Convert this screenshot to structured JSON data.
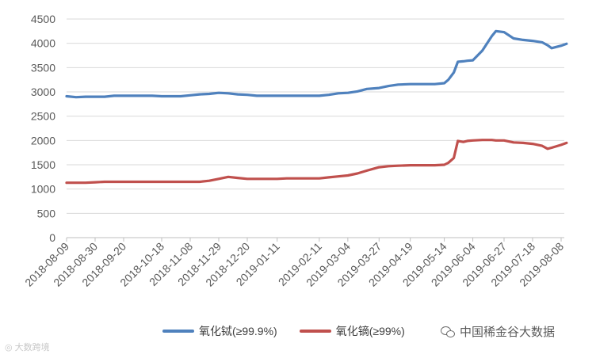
{
  "chart_data": {
    "type": "line",
    "title": "",
    "xlabel": "",
    "ylabel": "",
    "ylim": [
      0,
      4500
    ],
    "yticks": [
      0,
      500,
      1000,
      1500,
      2000,
      2500,
      3000,
      3500,
      4000,
      4500
    ],
    "x_tick_labels": [
      "2018-08-09",
      "2018-08-30",
      "2018-09-20",
      "2018-10-18",
      "2018-11-08",
      "2018-11-29",
      "2018-12-20",
      "2019-01-11",
      "2019-02-11",
      "2019-03-04",
      "2019-03-27",
      "2019-04-19",
      "2019-05-14",
      "2019-06-04",
      "2019-06-27",
      "2019-07-18",
      "2019-08-08"
    ],
    "grid": "horizontal",
    "legend": "bottom",
    "x": [
      "2018-08-09",
      "2018-08-16",
      "2018-08-23",
      "2018-08-30",
      "2018-09-06",
      "2018-09-13",
      "2018-09-20",
      "2018-09-27",
      "2018-10-11",
      "2018-10-18",
      "2018-10-25",
      "2018-11-01",
      "2018-11-08",
      "2018-11-15",
      "2018-11-22",
      "2018-11-29",
      "2018-12-06",
      "2018-12-13",
      "2018-12-20",
      "2018-12-27",
      "2019-01-04",
      "2019-01-11",
      "2019-01-18",
      "2019-01-25",
      "2019-02-11",
      "2019-02-18",
      "2019-02-25",
      "2019-03-04",
      "2019-03-11",
      "2019-03-18",
      "2019-03-27",
      "2019-04-03",
      "2019-04-10",
      "2019-04-19",
      "2019-04-26",
      "2019-05-07",
      "2019-05-14",
      "2019-05-17",
      "2019-05-21",
      "2019-05-24",
      "2019-05-28",
      "2019-05-31",
      "2019-06-04",
      "2019-06-11",
      "2019-06-18",
      "2019-06-21",
      "2019-06-27",
      "2019-07-04",
      "2019-07-11",
      "2019-07-18",
      "2019-07-25",
      "2019-07-29",
      "2019-08-01",
      "2019-08-08",
      "2019-08-12"
    ],
    "series": [
      {
        "name": "氧化铽(≥99.9%)",
        "color": "#4f81bd",
        "values": [
          2910,
          2890,
          2900,
          2900,
          2900,
          2920,
          2920,
          2920,
          2920,
          2910,
          2910,
          2910,
          2930,
          2950,
          2960,
          2980,
          2970,
          2950,
          2940,
          2920,
          2920,
          2920,
          2920,
          2920,
          2920,
          2940,
          2970,
          2980,
          3010,
          3060,
          3080,
          3120,
          3150,
          3160,
          3160,
          3160,
          3180,
          3250,
          3400,
          3620,
          3630,
          3640,
          3650,
          3850,
          4150,
          4250,
          4230,
          4100,
          4070,
          4050,
          4020,
          3960,
          3900,
          3950,
          3990
        ]
      },
      {
        "name": "氧化镝(≥99%)",
        "color": "#c0504d",
        "values": [
          1130,
          1130,
          1130,
          1140,
          1150,
          1150,
          1150,
          1150,
          1150,
          1150,
          1150,
          1150,
          1150,
          1150,
          1170,
          1210,
          1250,
          1230,
          1210,
          1210,
          1210,
          1210,
          1220,
          1220,
          1220,
          1240,
          1260,
          1280,
          1320,
          1380,
          1450,
          1470,
          1480,
          1490,
          1490,
          1490,
          1500,
          1540,
          1640,
          1990,
          1970,
          1990,
          2000,
          2010,
          2010,
          2000,
          2000,
          1960,
          1950,
          1930,
          1890,
          1830,
          1850,
          1910,
          1950
        ]
      }
    ]
  },
  "watermark_left": "大数跨境",
  "watermark_right": "中国稀金谷大数据"
}
